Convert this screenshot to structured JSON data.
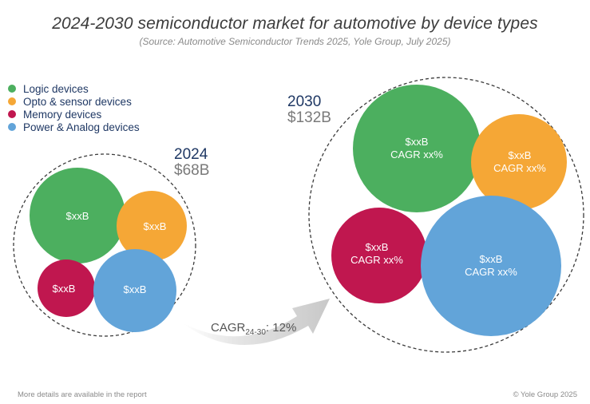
{
  "title": "2024-2030 semiconductor market for automotive by device types",
  "subtitle": "(Source: Automotive Semiconductor Trends 2025, Yole Group, July 2025)",
  "legend": [
    {
      "label": "Logic devices",
      "color": "#4caf5f"
    },
    {
      "label": "Opto & sensor devices",
      "color": "#f5a736"
    },
    {
      "label": "Memory devices",
      "color": "#c0174f"
    },
    {
      "label": "Power & Analog devices",
      "color": "#62a4d9"
    }
  ],
  "groups": [
    {
      "year": "2024",
      "total": "$68B",
      "bubbles": [
        {
          "category": "Logic devices",
          "color": "#4caf5f",
          "lines": [
            "$xxB"
          ]
        },
        {
          "category": "Opto & sensor devices",
          "color": "#f5a736",
          "lines": [
            "$xxB"
          ]
        },
        {
          "category": "Memory devices",
          "color": "#c0174f",
          "lines": [
            "$xxB"
          ]
        },
        {
          "category": "Power & Analog devices",
          "color": "#62a4d9",
          "lines": [
            "$xxB"
          ]
        }
      ]
    },
    {
      "year": "2030",
      "total": "$132B",
      "bubbles": [
        {
          "category": "Logic devices",
          "color": "#4caf5f",
          "lines": [
            "$xxB",
            "CAGR xx%"
          ]
        },
        {
          "category": "Opto & sensor devices",
          "color": "#f5a736",
          "lines": [
            "$xxB",
            "CAGR xx%"
          ]
        },
        {
          "category": "Memory devices",
          "color": "#c0174f",
          "lines": [
            "$xxB",
            "CAGR xx%"
          ]
        },
        {
          "category": "Power & Analog devices",
          "color": "#62a4d9",
          "lines": [
            "$xxB",
            "CAGR xx%"
          ]
        }
      ]
    }
  ],
  "cagr": {
    "prefix": "CAGR",
    "subscript": "24-30",
    "suffix": ": 12%"
  },
  "footer": {
    "left": "More details are available in the report",
    "right": "© Yole Group 2025"
  }
}
